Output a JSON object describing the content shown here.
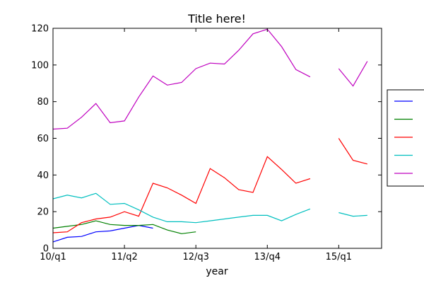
{
  "chart_data": {
    "type": "line",
    "title": "Title here!",
    "xlabel": "year",
    "ylabel": "",
    "x_tick_labels": [
      "10/q1",
      "11/q2",
      "12/q3",
      "13/q4",
      "15/q1"
    ],
    "x_tick_positions": [
      0,
      5,
      10,
      15,
      20
    ],
    "xlim": [
      0,
      23
    ],
    "ylim": [
      0,
      120
    ],
    "y_ticks": [
      0,
      20,
      40,
      60,
      80,
      100,
      120
    ],
    "grid": false,
    "legend": {
      "placement": "center-right outside plot",
      "entries_text_visible": false
    },
    "series": [
      {
        "color": "#0000ff",
        "x": [
          0,
          1,
          2,
          3,
          4,
          5,
          6,
          7
        ],
        "values": [
          3.5,
          6,
          6.5,
          9,
          9.5,
          11,
          12.5,
          11
        ]
      },
      {
        "color": "#008000",
        "x": [
          0,
          1,
          2,
          3,
          4,
          5,
          6,
          7,
          8,
          9,
          10
        ],
        "values": [
          11,
          12,
          13,
          15,
          13,
          12.5,
          12.5,
          13,
          10,
          8,
          9
        ]
      },
      {
        "color": "#ff0000",
        "x": [
          0,
          1,
          2,
          3,
          4,
          5,
          6,
          7,
          8,
          9,
          10,
          11,
          12,
          13,
          14,
          15,
          16,
          17,
          18,
          20,
          21,
          22
        ],
        "values": [
          8.5,
          9,
          14,
          16,
          17,
          20,
          17.5,
          35.5,
          33,
          29,
          24.5,
          43.5,
          38.5,
          32,
          30.5,
          50,
          43,
          35.5,
          38,
          60,
          48,
          46
        ]
      },
      {
        "color": "#00bfbf",
        "x": [
          0,
          1,
          2,
          3,
          4,
          5,
          6,
          7,
          8,
          9,
          10,
          11,
          12,
          13,
          14,
          15,
          16,
          17,
          18,
          20,
          21,
          22
        ],
        "values": [
          27,
          29,
          27.5,
          30,
          24,
          24.5,
          21,
          17,
          14.5,
          14.5,
          14,
          15,
          16,
          17,
          18,
          18,
          15,
          18.5,
          21.5,
          19.5,
          17.5,
          18
        ]
      },
      {
        "color": "#bf00bf",
        "x": [
          0,
          1,
          2,
          3,
          4,
          5,
          6,
          7,
          8,
          9,
          10,
          11,
          12,
          13,
          14,
          15,
          16,
          17,
          18,
          20,
          21,
          22
        ],
        "values": [
          65,
          65.5,
          71.5,
          79,
          68.5,
          69.5,
          82.5,
          94,
          89,
          90.5,
          98,
          101,
          100.5,
          108,
          117,
          119.5,
          110,
          97.5,
          93.5,
          98,
          88.5,
          102
        ]
      }
    ]
  }
}
